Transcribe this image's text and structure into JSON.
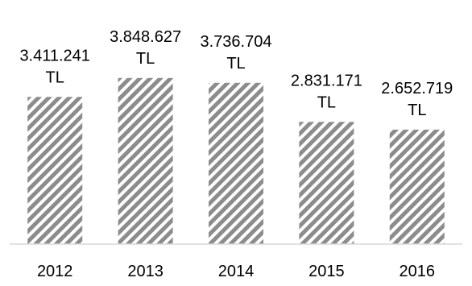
{
  "chart_data": {
    "type": "bar",
    "categories": [
      "2012",
      "2013",
      "2014",
      "2015",
      "2016"
    ],
    "values": [
      3411241,
      3848627,
      3736704,
      2831171,
      2652719
    ],
    "data_labels": [
      [
        "3.411.241",
        "TL"
      ],
      [
        "3.848.627",
        "TL"
      ],
      [
        "3.736.704",
        "TL"
      ],
      [
        "2.831.171",
        "TL"
      ],
      [
        "2.652.719",
        "TL"
      ]
    ],
    "title": "",
    "xlabel": "",
    "ylabel": "",
    "ylim": [
      0,
      4200000
    ],
    "grid": false,
    "legend": "none",
    "bar_pattern": "diagonal-stripes",
    "colors": {
      "bar_stripe": "#8c8c8c",
      "bar_background": "#ffffff",
      "axis": "#d9d9d9",
      "text": "#000000"
    }
  }
}
